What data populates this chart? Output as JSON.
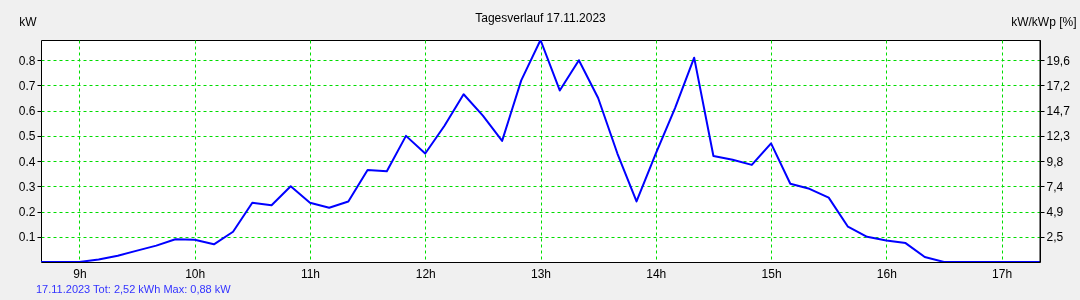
{
  "chart_data": {
    "type": "line",
    "title": "Tagesverlauf 17.11.2023",
    "ylabel": "kW",
    "y2label": "kW/kWp [%]",
    "annotations": [
      "17.11.2023 Tot: 2,52 kWh Max: 0,88 kW"
    ],
    "x": [
      8.667,
      8.833,
      9.0,
      9.167,
      9.333,
      9.5,
      9.667,
      9.833,
      10.0,
      10.167,
      10.333,
      10.5,
      10.667,
      10.833,
      11.0,
      11.167,
      11.333,
      11.5,
      11.667,
      11.833,
      12.0,
      12.167,
      12.333,
      12.5,
      12.667,
      12.833,
      13.0,
      13.167,
      13.333,
      13.5,
      13.667,
      13.833,
      14.0,
      14.167,
      14.333,
      14.5,
      14.667,
      14.833,
      15.0,
      15.167,
      15.333,
      15.5,
      15.667,
      15.833,
      16.0,
      16.167,
      16.333,
      16.5,
      16.667,
      16.833,
      17.0,
      17.167,
      17.333
    ],
    "series": [
      {
        "color": "#0000ff",
        "values": [
          0,
          0,
          0,
          0.01,
          0.025,
          0.045,
          0.065,
          0.09,
          0.088,
          0.07,
          0.12,
          0.235,
          0.225,
          0.3,
          0.235,
          0.215,
          0.24,
          0.365,
          0.36,
          0.5,
          0.43,
          0.54,
          0.665,
          0.58,
          0.48,
          0.72,
          0.88,
          0.68,
          0.8,
          0.65,
          0.43,
          0.24,
          0.43,
          0.61,
          0.81,
          0.42,
          0.405,
          0.385,
          0.47,
          0.31,
          0.29,
          0.255,
          0.14,
          0.1,
          0.085,
          0.075,
          0.02,
          0,
          0,
          0,
          0,
          0,
          0
        ]
      }
    ],
    "xlim": [
      8.667,
      17.333
    ],
    "xticks": [
      {
        "value": 9,
        "label": "9h"
      },
      {
        "value": 10,
        "label": "10h"
      },
      {
        "value": 11,
        "label": "11h"
      },
      {
        "value": 12,
        "label": "12h"
      },
      {
        "value": 13,
        "label": "13h"
      },
      {
        "value": 14,
        "label": "14h"
      },
      {
        "value": 15,
        "label": "15h"
      },
      {
        "value": 16,
        "label": "16h"
      },
      {
        "value": 17,
        "label": "17h"
      }
    ],
    "ylim": [
      0,
      0.88
    ],
    "yticks": [
      0.1,
      0.2,
      0.3,
      0.4,
      0.5,
      0.6,
      0.7,
      0.8
    ],
    "y2lim": [
      0,
      21.56
    ],
    "y2ticks": [
      {
        "value": 2.45,
        "label": "2,5"
      },
      {
        "value": 4.9,
        "label": "4,9"
      },
      {
        "value": 7.35,
        "label": "7,4"
      },
      {
        "value": 9.8,
        "label": "9,8"
      },
      {
        "value": 12.25,
        "label": "12,3"
      },
      {
        "value": 14.7,
        "label": "14,7"
      },
      {
        "value": 17.15,
        "label": "17,2"
      },
      {
        "value": 19.6,
        "label": "19,6"
      }
    ],
    "grid": true,
    "line_style": "solid",
    "marker": "none"
  }
}
